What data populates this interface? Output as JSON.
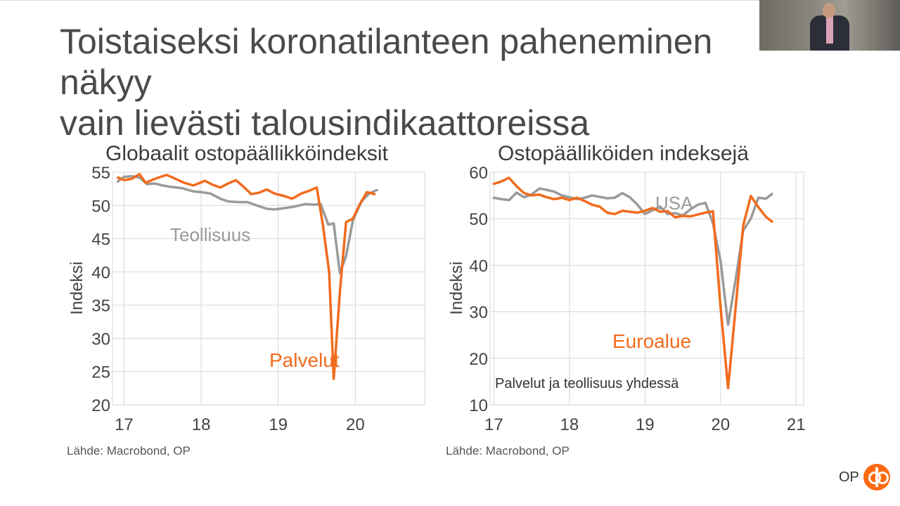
{
  "slide": {
    "title_line1": "Toistaiseksi koronatilanteen paheneminen näkyy",
    "title_line2": "vain lievästi talousindikaattoreissa",
    "logo_text": "OP"
  },
  "colors": {
    "orange": "#f26b1d",
    "gray": "#9a9a9a",
    "grid": "#d6d6d6"
  },
  "chart_data": [
    {
      "type": "line",
      "title": "Globaalit ostopäällikköindeksit",
      "ylabel": "Indeksi",
      "source": "Lähde: Macrobond, OP",
      "ylim": [
        20,
        55
      ],
      "yticks": [
        20,
        25,
        30,
        35,
        40,
        45,
        50,
        55
      ],
      "xlim": [
        2016.85,
        2020.9
      ],
      "xticks": [
        {
          "label": "17",
          "value": 2017
        },
        {
          "label": "18",
          "value": 2018
        },
        {
          "label": "19",
          "value": 2019
        },
        {
          "label": "20",
          "value": 2020
        }
      ],
      "grid": true,
      "series": [
        {
          "name": "Teollisuus",
          "color": "#9a9a9a",
          "points": [
            [
              2016.92,
              53.6
            ],
            [
              2017.0,
              54.3
            ],
            [
              2017.1,
              54.4
            ],
            [
              2017.2,
              54.2
            ],
            [
              2017.3,
              53.2
            ],
            [
              2017.4,
              53.3
            ],
            [
              2017.5,
              53.0
            ],
            [
              2017.6,
              52.8
            ],
            [
              2017.75,
              52.6
            ],
            [
              2017.9,
              52.1
            ],
            [
              2018.0,
              52.0
            ],
            [
              2018.12,
              51.8
            ],
            [
              2018.25,
              51.0
            ],
            [
              2018.35,
              50.6
            ],
            [
              2018.5,
              50.5
            ],
            [
              2018.6,
              50.5
            ],
            [
              2018.72,
              50.0
            ],
            [
              2018.85,
              49.5
            ],
            [
              2018.95,
              49.4
            ],
            [
              2019.08,
              49.6
            ],
            [
              2019.2,
              49.8
            ],
            [
              2019.35,
              50.2
            ],
            [
              2019.45,
              50.1
            ],
            [
              2019.55,
              50.2
            ],
            [
              2019.65,
              47.1
            ],
            [
              2019.72,
              47.3
            ],
            [
              2019.8,
              39.8
            ],
            [
              2019.88,
              42.4
            ],
            [
              2019.97,
              47.8
            ],
            [
              2020.08,
              50.6
            ],
            [
              2020.18,
              51.8
            ],
            [
              2020.28,
              52.3
            ]
          ]
        },
        {
          "name": "Palvelut",
          "color": "#f26b1d",
          "points": [
            [
              2016.92,
              54.2
            ],
            [
              2017.0,
              53.8
            ],
            [
              2017.1,
              54.0
            ],
            [
              2017.2,
              54.7
            ],
            [
              2017.28,
              53.4
            ],
            [
              2017.4,
              54.0
            ],
            [
              2017.55,
              54.6
            ],
            [
              2017.65,
              54.1
            ],
            [
              2017.78,
              53.4
            ],
            [
              2017.9,
              53.0
            ],
            [
              2018.05,
              53.7
            ],
            [
              2018.15,
              53.1
            ],
            [
              2018.25,
              52.7
            ],
            [
              2018.35,
              53.3
            ],
            [
              2018.45,
              53.8
            ],
            [
              2018.55,
              52.8
            ],
            [
              2018.65,
              51.7
            ],
            [
              2018.75,
              51.9
            ],
            [
              2018.85,
              52.4
            ],
            [
              2018.95,
              51.8
            ],
            [
              2019.08,
              51.4
            ],
            [
              2019.18,
              51.0
            ],
            [
              2019.3,
              51.8
            ],
            [
              2019.4,
              52.2
            ],
            [
              2019.5,
              52.7
            ],
            [
              2019.58,
              47.0
            ],
            [
              2019.66,
              40.0
            ],
            [
              2019.72,
              23.9
            ],
            [
              2019.8,
              37.0
            ],
            [
              2019.88,
              47.5
            ],
            [
              2019.97,
              48.0
            ],
            [
              2020.05,
              50.0
            ],
            [
              2020.15,
              52.0
            ],
            [
              2020.25,
              51.7
            ]
          ]
        }
      ],
      "annotations": [
        {
          "text": "Teollisuus",
          "color": "#9a9a9a"
        },
        {
          "text": "Palvelut",
          "color": "#f26b1d"
        }
      ]
    },
    {
      "type": "line",
      "title": "Ostopäälliköiden indeksejä",
      "subtitle": "Palvelut ja teollisuus yhdessä",
      "ylabel": "Indeksi",
      "source": "Lähde: Macrobond, OP",
      "ylim": [
        10,
        60
      ],
      "yticks": [
        10,
        20,
        30,
        40,
        50,
        60
      ],
      "xlim": [
        2016.95,
        2021.1
      ],
      "xticks": [
        {
          "label": "17",
          "value": 2017
        },
        {
          "label": "18",
          "value": 2018
        },
        {
          "label": "19",
          "value": 2019
        },
        {
          "label": "20",
          "value": 2020
        },
        {
          "label": "21",
          "value": 2021
        }
      ],
      "grid": true,
      "series": [
        {
          "name": "USA",
          "color": "#9a9a9a",
          "points": [
            [
              2017.0,
              54.5
            ],
            [
              2017.1,
              54.2
            ],
            [
              2017.2,
              54.0
            ],
            [
              2017.3,
              55.6
            ],
            [
              2017.4,
              54.6
            ],
            [
              2017.5,
              55.2
            ],
            [
              2017.6,
              56.5
            ],
            [
              2017.7,
              56.2
            ],
            [
              2017.8,
              55.8
            ],
            [
              2017.9,
              55.0
            ],
            [
              2018.0,
              54.6
            ],
            [
              2018.1,
              54.2
            ],
            [
              2018.2,
              54.5
            ],
            [
              2018.3,
              55.0
            ],
            [
              2018.4,
              54.7
            ],
            [
              2018.5,
              54.4
            ],
            [
              2018.6,
              54.5
            ],
            [
              2018.7,
              55.5
            ],
            [
              2018.8,
              54.6
            ],
            [
              2018.9,
              53.0
            ],
            [
              2019.0,
              51.0
            ],
            [
              2019.1,
              51.8
            ],
            [
              2019.2,
              52.6
            ],
            [
              2019.3,
              51.0
            ],
            [
              2019.4,
              51.2
            ],
            [
              2019.5,
              50.7
            ],
            [
              2019.6,
              52.0
            ],
            [
              2019.7,
              53.0
            ],
            [
              2019.8,
              53.4
            ],
            [
              2019.9,
              49.0
            ],
            [
              2020.0,
              40.9
            ],
            [
              2020.1,
              27.2
            ],
            [
              2020.2,
              37.0
            ],
            [
              2020.3,
              47.5
            ],
            [
              2020.4,
              50.0
            ],
            [
              2020.5,
              54.5
            ],
            [
              2020.6,
              54.3
            ],
            [
              2020.68,
              55.3
            ]
          ]
        },
        {
          "name": "Euroalue",
          "color": "#f26b1d",
          "points": [
            [
              2017.0,
              57.5
            ],
            [
              2017.1,
              58.0
            ],
            [
              2017.2,
              58.8
            ],
            [
              2017.3,
              57.0
            ],
            [
              2017.4,
              55.5
            ],
            [
              2017.5,
              55.0
            ],
            [
              2017.6,
              55.2
            ],
            [
              2017.7,
              54.6
            ],
            [
              2017.8,
              54.2
            ],
            [
              2017.9,
              54.5
            ],
            [
              2018.0,
              54.0
            ],
            [
              2018.1,
              54.5
            ],
            [
              2018.2,
              53.8
            ],
            [
              2018.3,
              53.0
            ],
            [
              2018.4,
              52.6
            ],
            [
              2018.5,
              51.3
            ],
            [
              2018.6,
              51.0
            ],
            [
              2018.7,
              51.7
            ],
            [
              2018.8,
              51.5
            ],
            [
              2018.9,
              51.3
            ],
            [
              2019.0,
              51.7
            ],
            [
              2019.1,
              52.3
            ],
            [
              2019.2,
              51.5
            ],
            [
              2019.3,
              51.6
            ],
            [
              2019.4,
              50.3
            ],
            [
              2019.5,
              50.6
            ],
            [
              2019.6,
              50.5
            ],
            [
              2019.7,
              50.9
            ],
            [
              2019.8,
              51.3
            ],
            [
              2019.9,
              51.6
            ],
            [
              2020.0,
              31.0
            ],
            [
              2020.1,
              13.6
            ],
            [
              2020.2,
              31.0
            ],
            [
              2020.3,
              48.5
            ],
            [
              2020.4,
              54.9
            ],
            [
              2020.5,
              52.5
            ],
            [
              2020.6,
              50.4
            ],
            [
              2020.68,
              49.4
            ]
          ]
        }
      ],
      "annotations": [
        {
          "text": "USA",
          "color": "#9a9a9a"
        },
        {
          "text": "Euroalue",
          "color": "#f26b1d"
        }
      ]
    }
  ]
}
